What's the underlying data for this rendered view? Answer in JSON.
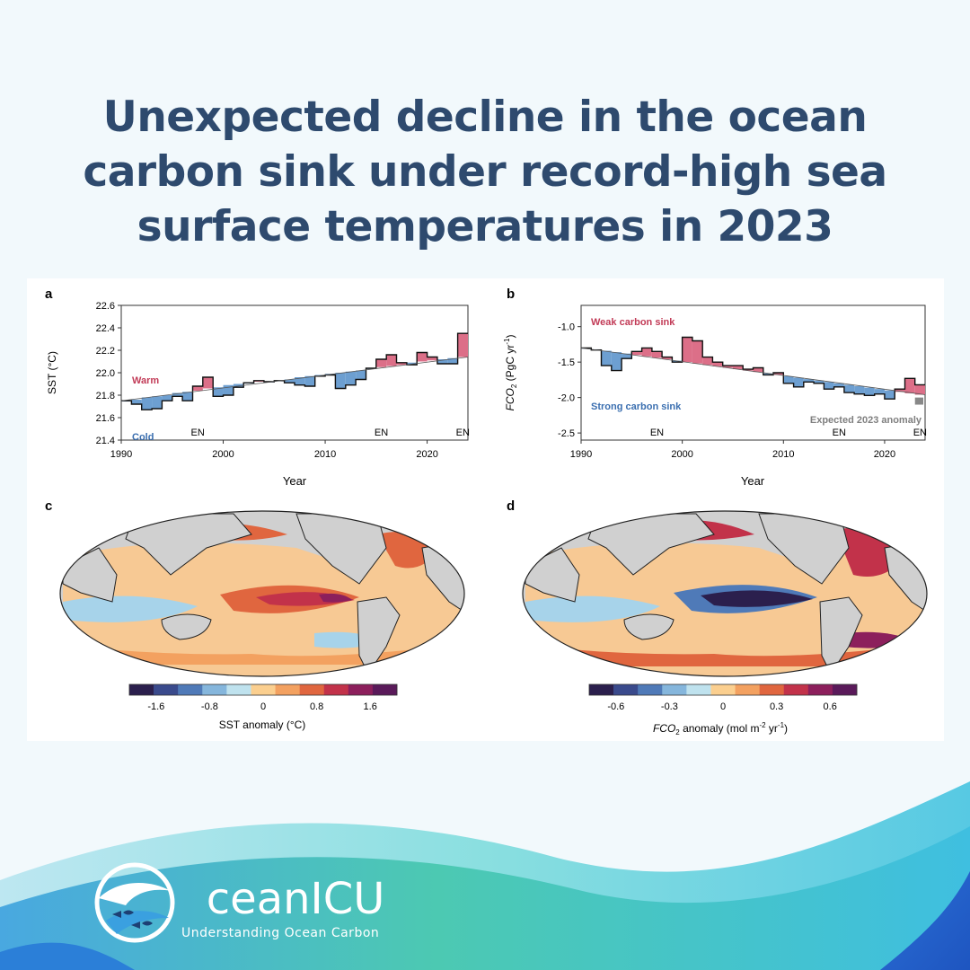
{
  "title": "Unexpected decline in the ocean carbon sink under record-high sea surface temperatures in 2023",
  "brand": {
    "name_prefix": "O",
    "name_rest": "ceanICU",
    "tagline": "Understanding Ocean Carbon",
    "icon": "wave-fish-logo-icon"
  },
  "colors": {
    "title": "#2e4a6e",
    "warm_fill": "#dc6f88",
    "cold_fill": "#6d9fd1",
    "warm_text": "#c23b57",
    "cold_text": "#3b6fb0",
    "expected_grey": "#7f7f7f",
    "background": "#f2f9fc"
  },
  "chart_data": [
    {
      "panel": "a",
      "type": "line",
      "ylabel": "SST (°C)",
      "xlabel": "Year",
      "xlim": [
        1990,
        2024
      ],
      "ylim": [
        21.4,
        22.6
      ],
      "xticks": [
        1990,
        2000,
        2010,
        2020
      ],
      "yticks": [
        21.4,
        21.6,
        21.8,
        22.0,
        22.2,
        22.4,
        22.6
      ],
      "ytick_labels": [
        "21.4",
        "21.6",
        "21.8",
        "22.0",
        "22.2",
        "22.4",
        "22.6"
      ],
      "annotations": {
        "warm": "Warm",
        "cold": "Cold"
      },
      "en_markers": [
        {
          "x": 1997.5,
          "label": "EN"
        },
        {
          "x": 2015.5,
          "label": "EN"
        },
        {
          "x": 2023.5,
          "label": "EN"
        }
      ],
      "series": [
        {
          "values": [
            {
              "x": 1990,
              "y": 21.75,
              "trend": 21.75
            },
            {
              "x": 1991,
              "y": 21.72,
              "trend": 21.76
            },
            {
              "x": 1992,
              "y": 21.67,
              "trend": 21.78
            },
            {
              "x": 1993,
              "y": 21.68,
              "trend": 21.79
            },
            {
              "x": 1994,
              "y": 21.75,
              "trend": 21.8
            },
            {
              "x": 1995,
              "y": 21.79,
              "trend": 21.82
            },
            {
              "x": 1996,
              "y": 21.75,
              "trend": 21.83
            },
            {
              "x": 1997,
              "y": 21.88,
              "trend": 21.84
            },
            {
              "x": 1998,
              "y": 21.96,
              "trend": 21.86
            },
            {
              "x": 1999,
              "y": 21.79,
              "trend": 21.87
            },
            {
              "x": 2000,
              "y": 21.8,
              "trend": 21.89
            },
            {
              "x": 2001,
              "y": 21.87,
              "trend": 21.9
            },
            {
              "x": 2002,
              "y": 21.91,
              "trend": 21.91
            },
            {
              "x": 2003,
              "y": 21.93,
              "trend": 21.92
            },
            {
              "x": 2004,
              "y": 21.92,
              "trend": 21.92
            },
            {
              "x": 2005,
              "y": 21.93,
              "trend": 21.93
            },
            {
              "x": 2006,
              "y": 21.91,
              "trend": 21.94
            },
            {
              "x": 2007,
              "y": 21.89,
              "trend": 21.96
            },
            {
              "x": 2008,
              "y": 21.88,
              "trend": 21.97
            },
            {
              "x": 2009,
              "y": 21.97,
              "trend": 21.98
            },
            {
              "x": 2010,
              "y": 21.98,
              "trend": 21.99
            },
            {
              "x": 2011,
              "y": 21.86,
              "trend": 22.0
            },
            {
              "x": 2012,
              "y": 21.89,
              "trend": 22.01
            },
            {
              "x": 2013,
              "y": 21.94,
              "trend": 22.02
            },
            {
              "x": 2014,
              "y": 22.04,
              "trend": 22.04
            },
            {
              "x": 2015,
              "y": 22.12,
              "trend": 22.05
            },
            {
              "x": 2016,
              "y": 22.16,
              "trend": 22.06
            },
            {
              "x": 2017,
              "y": 22.09,
              "trend": 22.07
            },
            {
              "x": 2018,
              "y": 22.07,
              "trend": 22.09
            },
            {
              "x": 2019,
              "y": 22.18,
              "trend": 22.1
            },
            {
              "x": 2020,
              "y": 22.14,
              "trend": 22.11
            },
            {
              "x": 2021,
              "y": 22.08,
              "trend": 22.12
            },
            {
              "x": 2022,
              "y": 22.08,
              "trend": 22.13
            },
            {
              "x": 2023,
              "y": 22.35,
              "trend": 22.14
            }
          ]
        }
      ]
    },
    {
      "panel": "b",
      "type": "line",
      "ylabel_main": "FCO",
      "ylabel_sub": "2",
      "ylabel_units": " (PgC yr",
      "ylabel_sup": "-1",
      "ylabel_close": ")",
      "xlabel": "Year",
      "xlim": [
        1990,
        2024
      ],
      "ylim": [
        -2.6,
        -0.7
      ],
      "ylim_note": "inverted",
      "xticks": [
        1990,
        2000,
        2010,
        2020
      ],
      "yticks": [
        -1.0,
        -1.5,
        -2.0,
        -2.5
      ],
      "ytick_labels": [
        "-1.0",
        "-1.5",
        "-2.0",
        "-2.5"
      ],
      "annotations": {
        "weak": "Weak carbon sink",
        "strong": "Strong carbon sink",
        "expected": "Expected 2023 anomaly"
      },
      "en_markers": [
        {
          "x": 1997.5,
          "label": "EN"
        },
        {
          "x": 2015.5,
          "label": "EN"
        },
        {
          "x": 2023.5,
          "label": "EN"
        }
      ],
      "expected_2023": [
        -2.0,
        -2.1
      ],
      "series": [
        {
          "values": [
            {
              "x": 1990,
              "y": -1.3,
              "trend": -1.3
            },
            {
              "x": 1991,
              "y": -1.33,
              "trend": -1.32
            },
            {
              "x": 1992,
              "y": -1.55,
              "trend": -1.34
            },
            {
              "x": 1993,
              "y": -1.62,
              "trend": -1.36
            },
            {
              "x": 1994,
              "y": -1.45,
              "trend": -1.38
            },
            {
              "x": 1995,
              "y": -1.35,
              "trend": -1.4
            },
            {
              "x": 1996,
              "y": -1.3,
              "trend": -1.42
            },
            {
              "x": 1997,
              "y": -1.35,
              "trend": -1.44
            },
            {
              "x": 1998,
              "y": -1.43,
              "trend": -1.46
            },
            {
              "x": 1999,
              "y": -1.5,
              "trend": -1.48
            },
            {
              "x": 2000,
              "y": -1.15,
              "trend": -1.5
            },
            {
              "x": 2001,
              "y": -1.2,
              "trend": -1.52
            },
            {
              "x": 2002,
              "y": -1.43,
              "trend": -1.54
            },
            {
              "x": 2003,
              "y": -1.5,
              "trend": -1.56
            },
            {
              "x": 2004,
              "y": -1.55,
              "trend": -1.58
            },
            {
              "x": 2005,
              "y": -1.55,
              "trend": -1.6
            },
            {
              "x": 2006,
              "y": -1.6,
              "trend": -1.62
            },
            {
              "x": 2007,
              "y": -1.58,
              "trend": -1.64
            },
            {
              "x": 2008,
              "y": -1.68,
              "trend": -1.66
            },
            {
              "x": 2009,
              "y": -1.65,
              "trend": -1.68
            },
            {
              "x": 2010,
              "y": -1.8,
              "trend": -1.7
            },
            {
              "x": 2011,
              "y": -1.85,
              "trend": -1.72
            },
            {
              "x": 2012,
              "y": -1.78,
              "trend": -1.74
            },
            {
              "x": 2013,
              "y": -1.8,
              "trend": -1.76
            },
            {
              "x": 2014,
              "y": -1.88,
              "trend": -1.78
            },
            {
              "x": 2015,
              "y": -1.85,
              "trend": -1.8
            },
            {
              "x": 2016,
              "y": -1.93,
              "trend": -1.82
            },
            {
              "x": 2017,
              "y": -1.95,
              "trend": -1.84
            },
            {
              "x": 2018,
              "y": -1.97,
              "trend": -1.86
            },
            {
              "x": 2019,
              "y": -1.95,
              "trend": -1.88
            },
            {
              "x": 2020,
              "y": -2.02,
              "trend": -1.9
            },
            {
              "x": 2021,
              "y": -1.88,
              "trend": -1.92
            },
            {
              "x": 2022,
              "y": -1.73,
              "trend": -1.94
            },
            {
              "x": 2023,
              "y": -1.82,
              "trend": -1.96
            }
          ]
        }
      ]
    },
    {
      "panel": "c",
      "type": "heatmap",
      "colorbar_label": "SST anomaly (°C)",
      "colorbar_ticks": [
        -1.6,
        -0.8,
        0,
        0.8,
        1.6
      ],
      "colorbar_tick_labels": [
        "-1.6",
        "-0.8",
        "0",
        "0.8",
        "1.6"
      ],
      "colorbar_range": [
        -2.0,
        2.0
      ],
      "colors": [
        "#2b1f4d",
        "#3a4a8c",
        "#4f7ab8",
        "#85b6dc",
        "#bfe2ee",
        "#fbcf8f",
        "#f3a160",
        "#e0663f",
        "#c2324a",
        "#8c1f5c",
        "#5a1a5a"
      ]
    },
    {
      "panel": "d",
      "type": "heatmap",
      "colorbar_label_main": "FCO",
      "colorbar_label_sub": "2",
      "colorbar_label_rest": " anomaly (mol m",
      "colorbar_label_sup1": "-2",
      "colorbar_label_mid": " yr",
      "colorbar_label_sup2": "-1",
      "colorbar_label_close": ")",
      "colorbar_ticks": [
        -0.6,
        -0.3,
        0,
        0.3,
        0.6
      ],
      "colorbar_tick_labels": [
        "-0.6",
        "-0.3",
        "0",
        "0.3",
        "0.6"
      ],
      "colorbar_range": [
        -0.75,
        0.75
      ],
      "colors": [
        "#2b1f4d",
        "#3a4a8c",
        "#4f7ab8",
        "#85b6dc",
        "#bfe2ee",
        "#fbcf8f",
        "#f3a160",
        "#e0663f",
        "#c2324a",
        "#8c1f5c",
        "#5a1a5a"
      ]
    }
  ]
}
